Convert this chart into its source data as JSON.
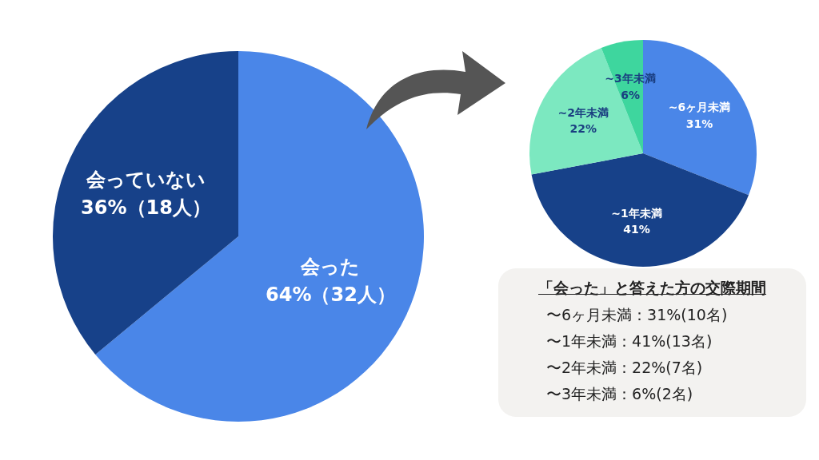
{
  "chart_data": [
    {
      "type": "pie",
      "categories": [
        "会った",
        "会っていない"
      ],
      "values": [
        64,
        36
      ],
      "colors": [
        "#4a86e8",
        "#174189"
      ],
      "value_labels": [
        "64%（32人）",
        "36%（18人）"
      ]
    },
    {
      "type": "pie",
      "categories": [
        "~6ヶ月未満",
        "~1年未満",
        "~2年未満",
        "~3年未満"
      ],
      "values": [
        31,
        41,
        22,
        6
      ],
      "colors": [
        "#4a86e8",
        "#174189",
        "#7ce8c0",
        "#3ed69e"
      ],
      "value_labels": [
        "31%",
        "41%",
        "22%",
        "6%"
      ]
    },
    {
      "type": "other",
      "title": "「会った」と答えた方の交際期間",
      "annotations": [
        "〜6ヶ月未満：31%(10名)",
        "〜1年未満：41%(13名)",
        "〜2年未満：22%(7名)",
        "〜3年未満：6%(2名)"
      ]
    }
  ]
}
